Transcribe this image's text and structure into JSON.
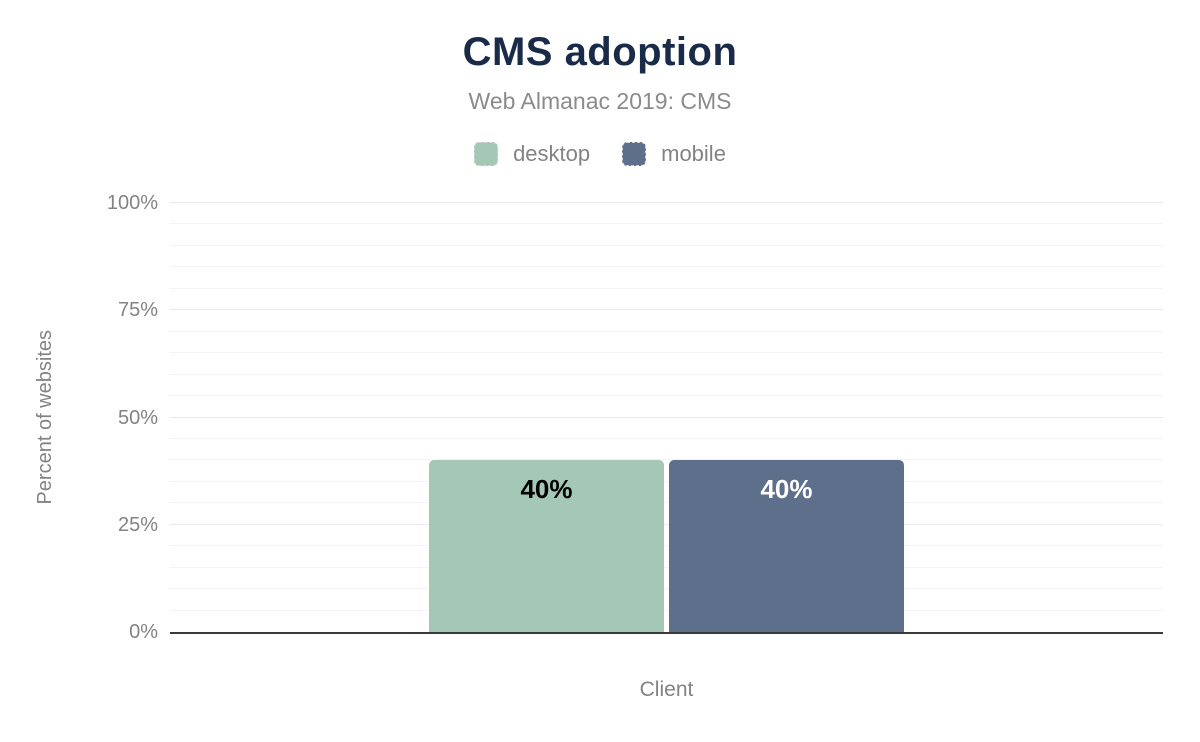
{
  "chart_data": {
    "type": "bar",
    "title": "CMS adoption",
    "subtitle": "Web Almanac 2019: CMS",
    "xlabel": "Client",
    "ylabel": "Percent of websites",
    "ylim": [
      0,
      100
    ],
    "yticks": [
      0,
      25,
      50,
      75,
      100
    ],
    "ytick_suffix": "%",
    "minor_grid_step": 5,
    "grid": true,
    "legend_position": "top",
    "categories": [
      "Client"
    ],
    "series": [
      {
        "name": "desktop",
        "value": 40,
        "label": "40%",
        "color": "#a5c8b6",
        "label_color": "#000000"
      },
      {
        "name": "mobile",
        "value": 40,
        "label": "40%",
        "color": "#5e6f8b",
        "label_color": "#ffffff"
      }
    ],
    "colors": {
      "title": "#1a2b49",
      "subtitle": "#8b8b8b",
      "axis_text": "#838383",
      "baseline": "#3a3a3a",
      "grid_minor": "#f3f3f3",
      "grid_major": "#eaeaea"
    }
  }
}
